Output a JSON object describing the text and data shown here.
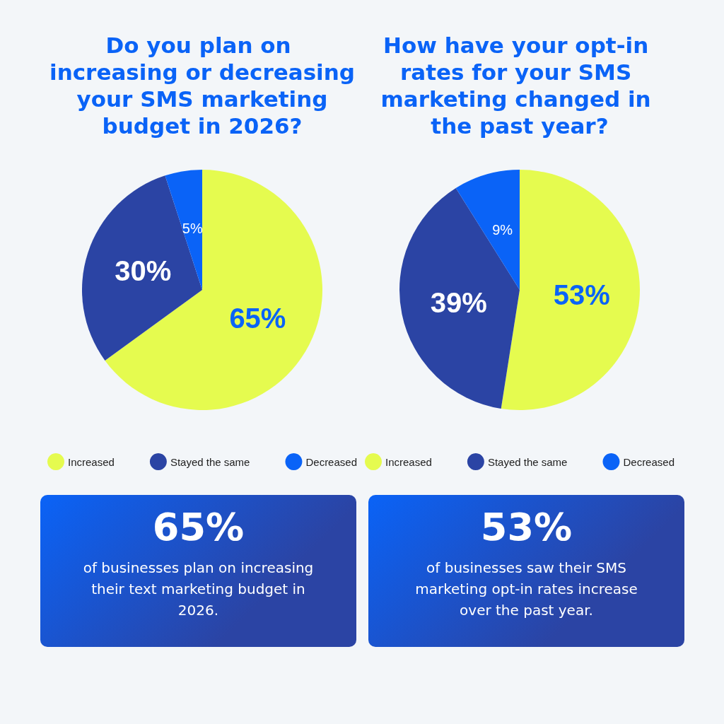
{
  "chart_data": [
    {
      "type": "pie",
      "title": "Do you plan on increasing or decreasing your SMS marketing budget in 2026?",
      "categories": [
        "Increased",
        "Stayed the same",
        "Decreased"
      ],
      "values": [
        65,
        30,
        5
      ],
      "colors": [
        "#e5fb4f",
        "#2b44a4",
        "#0a63f7"
      ],
      "value_labels": [
        "65%",
        "30%",
        "5%"
      ],
      "legend": "bottom"
    },
    {
      "type": "pie",
      "title": "How have your opt-in rates for your SMS marketing changed in the past year?",
      "categories": [
        "Increased",
        "Stayed the same",
        "Decreased"
      ],
      "values": [
        53,
        39,
        9
      ],
      "colors": [
        "#e5fb4f",
        "#2b44a4",
        "#0a63f7"
      ],
      "value_labels": [
        "53%",
        "39%",
        "9%"
      ],
      "legend": "bottom"
    },
    {
      "type": "other",
      "title": "65%",
      "annotations": [
        "of businesses plan on increasing their text marketing budget in 2026."
      ]
    },
    {
      "type": "other",
      "title": "53%",
      "annotations": [
        "of businesses saw their SMS marketing opt-in rates increase over the past year."
      ]
    }
  ]
}
